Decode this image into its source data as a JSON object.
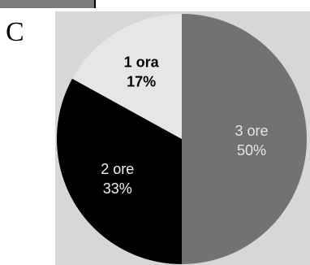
{
  "panel_letter": "C",
  "colors": {
    "plot_background": "#d7d7d7",
    "fragment_fill": "#7a7a7a",
    "slice_label_dark_bg": "#e6e6e6",
    "slice_label_light_bg": "#000000"
  },
  "chart_data": {
    "type": "pie",
    "title": "",
    "slices": [
      {
        "label": "3 ore",
        "value": 50,
        "value_label": "50%",
        "color": "#727272",
        "label_color": "#e4e4e4",
        "bold": false
      },
      {
        "label": "2 ore",
        "value": 33,
        "value_label": "33%",
        "color": "#000000",
        "label_color": "#f0f0f0",
        "bold": false
      },
      {
        "label": "1 ora",
        "value": 17,
        "value_label": "17%",
        "color": "#e6e6e6",
        "label_color": "#000000",
        "bold": true
      }
    ]
  }
}
